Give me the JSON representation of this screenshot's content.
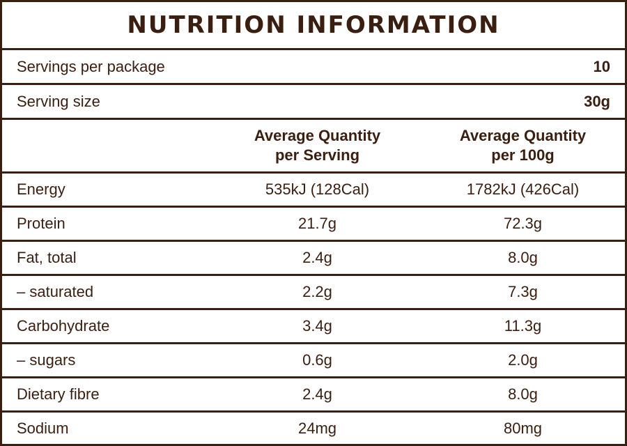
{
  "title": "NUTRITION INFORMATION",
  "servings": {
    "label": "Servings per package",
    "value": "10"
  },
  "serving_size": {
    "label": "Serving size",
    "value": "30g"
  },
  "columns": {
    "per_serving_line1": "Average Quantity",
    "per_serving_line2": "per Serving",
    "per_100g_line1": "Average Quantity",
    "per_100g_line2": "per 100g"
  },
  "rows": [
    {
      "label": "Energy",
      "per_serving": "535kJ (128Cal)",
      "per_100g": "1782kJ (426Cal)"
    },
    {
      "label": "Protein",
      "per_serving": "21.7g",
      "per_100g": "72.3g"
    },
    {
      "label": "Fat, total",
      "per_serving": "2.4g",
      "per_100g": "8.0g"
    },
    {
      "label": "– saturated",
      "per_serving": "2.2g",
      "per_100g": "7.3g"
    },
    {
      "label": "Carbohydrate",
      "per_serving": "3.4g",
      "per_100g": "11.3g"
    },
    {
      "label": "– sugars",
      "per_serving": "0.6g",
      "per_100g": "2.0g"
    },
    {
      "label": "Dietary fibre",
      "per_serving": "2.4g",
      "per_100g": "8.0g"
    },
    {
      "label": "Sodium",
      "per_serving": "24mg",
      "per_100g": "80mg"
    }
  ],
  "colors": {
    "text": "#3a1e10",
    "border": "#3a1e10",
    "background": "#ffffff"
  }
}
